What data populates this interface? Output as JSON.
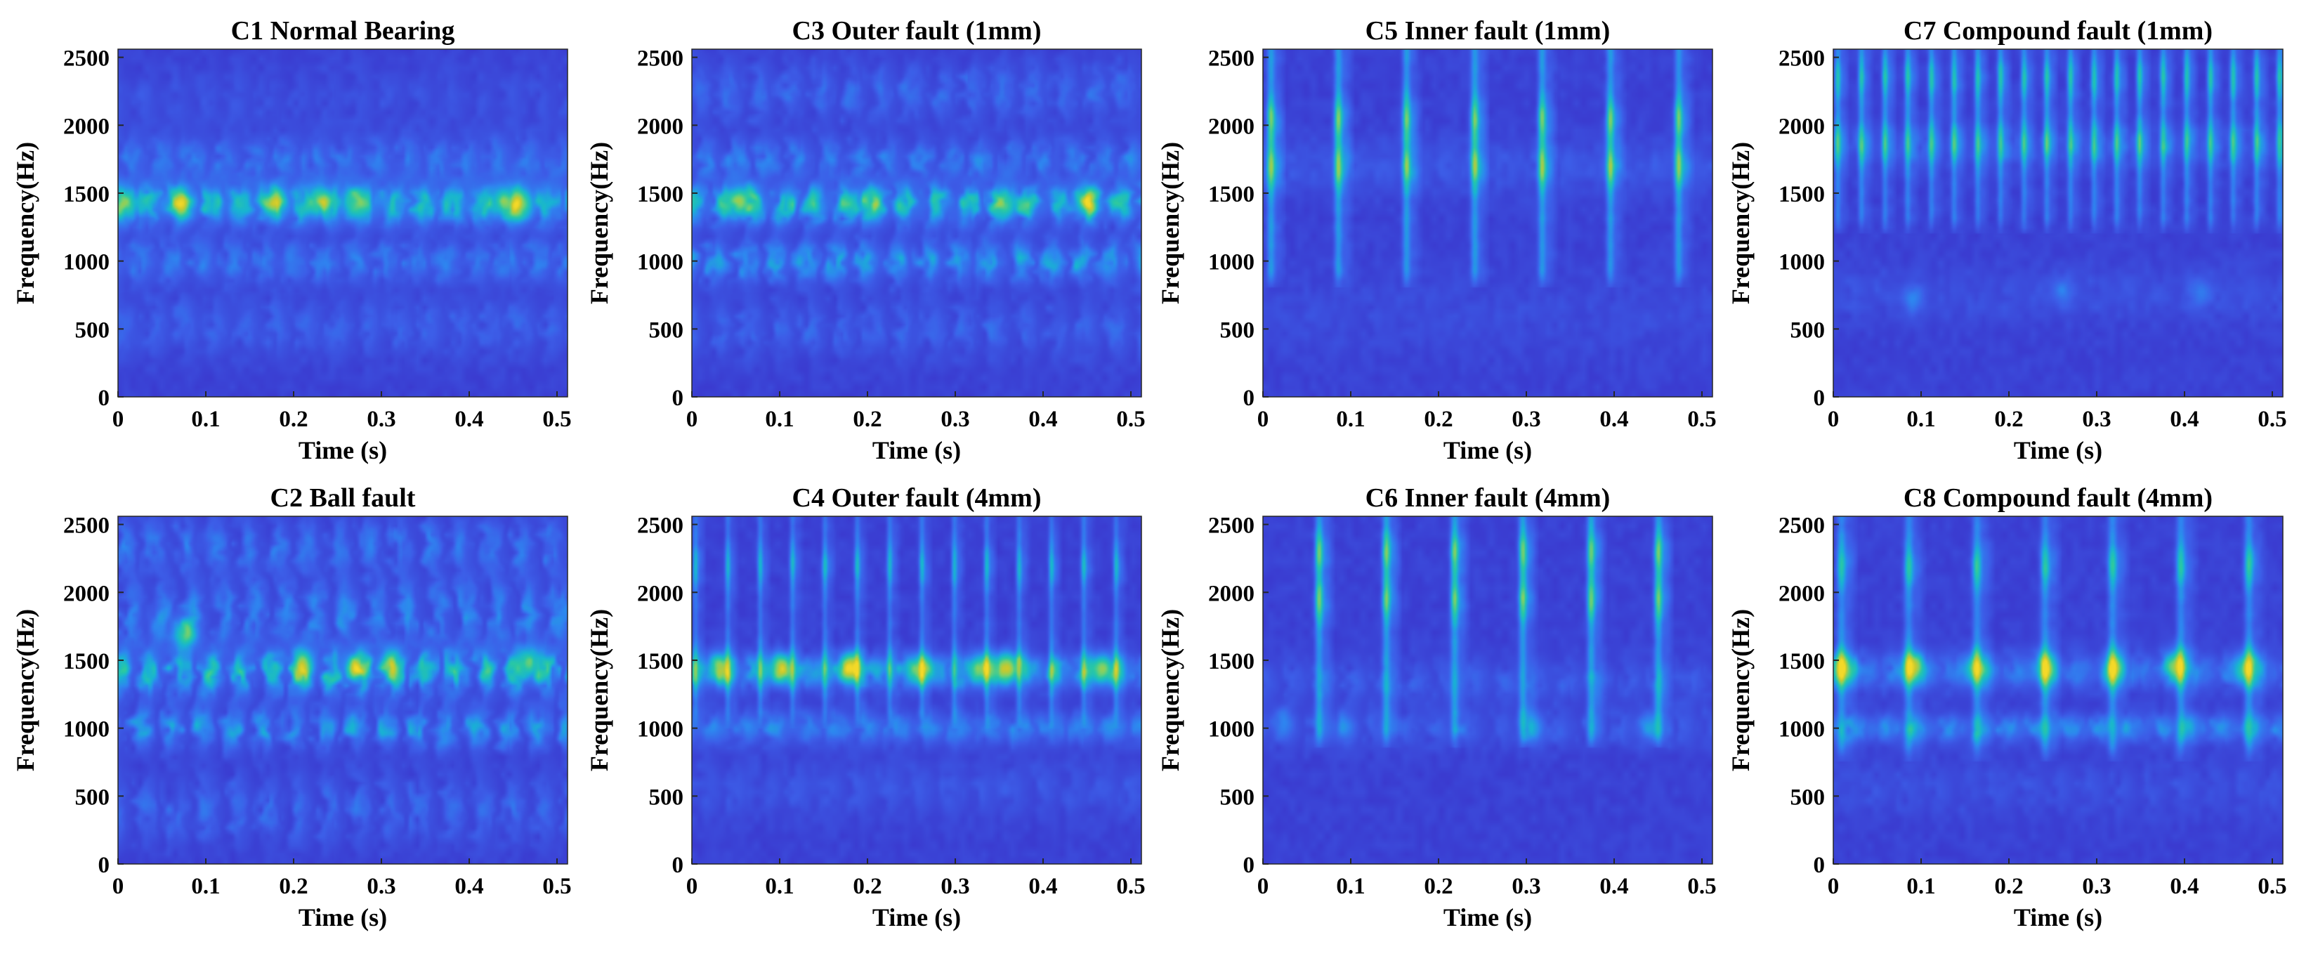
{
  "colors": {
    "background": "#332ba6",
    "colormap": [
      "#2c1ea6",
      "#3a3bd0",
      "#3c5ee8",
      "#2e86f0",
      "#18b4d2",
      "#29c8a4",
      "#7dd169",
      "#c7c92f",
      "#f4d928"
    ]
  },
  "chart_data": [
    {
      "type": "heatmap",
      "id": "c1",
      "title": "C1 Normal Bearing",
      "xlabel": "Time (s)",
      "ylabel": "Frequency(Hz)",
      "xlim": [
        0,
        0.512
      ],
      "ylim": [
        0,
        2560
      ],
      "xticks": [
        0,
        0.1,
        0.2,
        0.3,
        0.4,
        0.5
      ],
      "xtick_labels": [
        "0",
        "0.1",
        "0.2",
        "0.3",
        "0.4",
        "0.5"
      ],
      "yticks": [
        0,
        500,
        1000,
        1500,
        2000,
        2500
      ],
      "ytick_labels": [
        "0",
        "500",
        "1000",
        "1500",
        "2000",
        "2500"
      ],
      "bands": [
        {
          "f": 1420,
          "bw": 150,
          "amp": 0.42
        },
        {
          "f": 1000,
          "bw": 160,
          "amp": 0.2
        },
        {
          "f": 1750,
          "bw": 170,
          "amp": 0.18
        },
        {
          "f": 520,
          "bw": 220,
          "amp": 0.12
        },
        {
          "f": 2200,
          "bw": 250,
          "amp": 0.06
        }
      ],
      "band_modulation": 0.6,
      "hotspots": [
        {
          "t": 0.07,
          "f": 1430,
          "amp": 0.35
        },
        {
          "t": 0.18,
          "f": 1440,
          "amp": 0.3
        },
        {
          "t": 0.23,
          "f": 1450,
          "amp": 0.4
        },
        {
          "t": 0.27,
          "f": 1440,
          "amp": 0.35
        },
        {
          "t": 0.44,
          "f": 1440,
          "amp": 0.35
        },
        {
          "t": 0.46,
          "f": 1420,
          "amp": 0.4
        },
        {
          "t": 0.01,
          "f": 1420,
          "amp": 0.3
        }
      ],
      "impulses": []
    },
    {
      "type": "heatmap",
      "id": "c3",
      "title": "C3 Outer fault (1mm)",
      "xlabel": "Time (s)",
      "ylabel": "Frequency(Hz)",
      "xlim": [
        0,
        0.512
      ],
      "ylim": [
        0,
        2560
      ],
      "xticks": [
        0,
        0.1,
        0.2,
        0.3,
        0.4,
        0.5
      ],
      "xtick_labels": [
        "0",
        "0.1",
        "0.2",
        "0.3",
        "0.4",
        "0.5"
      ],
      "yticks": [
        0,
        500,
        1000,
        1500,
        2000,
        2500
      ],
      "ytick_labels": [
        "0",
        "500",
        "1000",
        "1500",
        "2000",
        "2500"
      ],
      "bands": [
        {
          "f": 1420,
          "bw": 140,
          "amp": 0.45
        },
        {
          "f": 1000,
          "bw": 150,
          "amp": 0.3
        },
        {
          "f": 1750,
          "bw": 160,
          "amp": 0.2
        },
        {
          "f": 2250,
          "bw": 220,
          "amp": 0.14
        },
        {
          "f": 500,
          "bw": 220,
          "amp": 0.12
        }
      ],
      "band_modulation": 0.7,
      "hotspots": [
        {
          "t": 0.055,
          "f": 1440,
          "amp": 0.5
        },
        {
          "t": 0.45,
          "f": 1440,
          "amp": 0.45
        },
        {
          "t": 0.2,
          "f": 1420,
          "amp": 0.3
        },
        {
          "t": 0.36,
          "f": 1420,
          "amp": 0.3
        }
      ],
      "impulses": []
    },
    {
      "type": "heatmap",
      "id": "c5",
      "title": "C5 Inner fault (1mm)",
      "xlabel": "Time (s)",
      "ylabel": "Frequency(Hz)",
      "xlim": [
        0,
        0.512
      ],
      "ylim": [
        0,
        2560
      ],
      "xticks": [
        0,
        0.1,
        0.2,
        0.3,
        0.4,
        0.5
      ],
      "xtick_labels": [
        "0",
        "0.1",
        "0.2",
        "0.3",
        "0.4",
        "0.5"
      ],
      "yticks": [
        0,
        500,
        1000,
        1500,
        2000,
        2500
      ],
      "ytick_labels": [
        "0",
        "500",
        "1000",
        "1500",
        "2000",
        "2500"
      ],
      "bands": [
        {
          "f": 1700,
          "bw": 200,
          "amp": 0.08
        },
        {
          "f": 600,
          "bw": 300,
          "amp": 0.04
        }
      ],
      "band_modulation": 0.3,
      "hotspots": [],
      "impulses": {
        "times": [
          0.008,
          0.085,
          0.163,
          0.241,
          0.318,
          0.396,
          0.474
        ],
        "fmin": 950,
        "fmax": 2560,
        "amp": 0.55,
        "width": 0.0045,
        "peaks": [
          1700,
          2050
        ]
      }
    },
    {
      "type": "heatmap",
      "id": "c7",
      "title": "C7 Compound fault (1mm)",
      "xlabel": "Time (s)",
      "ylabel": "Frequency(Hz)",
      "xlim": [
        0,
        0.512
      ],
      "ylim": [
        0,
        2560
      ],
      "xticks": [
        0,
        0.1,
        0.2,
        0.3,
        0.4,
        0.5
      ],
      "xtick_labels": [
        "0",
        "0.1",
        "0.2",
        "0.3",
        "0.4",
        "0.5"
      ],
      "yticks": [
        0,
        500,
        1000,
        1500,
        2000,
        2500
      ],
      "ytick_labels": [
        "0",
        "500",
        "1000",
        "1500",
        "2000",
        "2500"
      ],
      "bands": [
        {
          "f": 1850,
          "bw": 150,
          "amp": 0.1
        },
        {
          "f": 750,
          "bw": 200,
          "amp": 0.06
        }
      ],
      "band_modulation": 0.4,
      "hotspots": [
        {
          "t": 0.09,
          "f": 720,
          "amp": 0.15
        },
        {
          "t": 0.26,
          "f": 780,
          "amp": 0.15
        },
        {
          "t": 0.42,
          "f": 760,
          "amp": 0.15
        }
      ],
      "impulses": {
        "times": [
          0.004,
          0.031,
          0.058,
          0.084,
          0.111,
          0.137,
          0.164,
          0.19,
          0.217,
          0.243,
          0.27,
          0.297,
          0.323,
          0.349,
          0.376,
          0.403,
          0.43,
          0.456,
          0.483,
          0.509
        ],
        "fmin": 1350,
        "fmax": 2560,
        "amp": 0.42,
        "width": 0.0035,
        "peaks": [
          1880,
          2350
        ]
      }
    },
    {
      "type": "heatmap",
      "id": "c2",
      "title": "C2 Ball fault",
      "xlabel": "Time (s)",
      "ylabel": "Frequency(Hz)",
      "xlim": [
        0,
        0.512
      ],
      "ylim": [
        0,
        2560
      ],
      "xticks": [
        0,
        0.1,
        0.2,
        0.3,
        0.4,
        0.5
      ],
      "xtick_labels": [
        "0",
        "0.1",
        "0.2",
        "0.3",
        "0.4",
        "0.5"
      ],
      "yticks": [
        0,
        500,
        1000,
        1500,
        2000,
        2500
      ],
      "ytick_labels": [
        "0",
        "500",
        "1000",
        "1500",
        "2000",
        "2500"
      ],
      "bands": [
        {
          "f": 1420,
          "bw": 170,
          "amp": 0.42
        },
        {
          "f": 1000,
          "bw": 150,
          "amp": 0.28
        },
        {
          "f": 1850,
          "bw": 250,
          "amp": 0.22
        },
        {
          "f": 2350,
          "bw": 200,
          "amp": 0.18
        },
        {
          "f": 400,
          "bw": 250,
          "amp": 0.14
        }
      ],
      "band_modulation": 0.8,
      "hotspots": [
        {
          "t": 0.075,
          "f": 1700,
          "amp": 0.45
        },
        {
          "t": 0.21,
          "f": 1470,
          "amp": 0.35
        },
        {
          "t": 0.27,
          "f": 1440,
          "amp": 0.35
        },
        {
          "t": 0.31,
          "f": 1460,
          "amp": 0.35
        },
        {
          "t": 0.47,
          "f": 1480,
          "amp": 0.4
        }
      ],
      "impulses": []
    },
    {
      "type": "heatmap",
      "id": "c4",
      "title": "C4 Outer fault (4mm)",
      "xlabel": "Time (s)",
      "ylabel": "Frequency(Hz)",
      "xlim": [
        0,
        0.512
      ],
      "ylim": [
        0,
        2560
      ],
      "xticks": [
        0,
        0.1,
        0.2,
        0.3,
        0.4,
        0.5
      ],
      "xtick_labels": [
        "0",
        "0.1",
        "0.2",
        "0.3",
        "0.4",
        "0.5"
      ],
      "yticks": [
        0,
        500,
        1000,
        1500,
        2000,
        2500
      ],
      "ytick_labels": [
        "0",
        "500",
        "1000",
        "1500",
        "2000",
        "2500"
      ],
      "bands": [
        {
          "f": 1420,
          "bw": 120,
          "amp": 0.3
        },
        {
          "f": 1000,
          "bw": 120,
          "amp": 0.22
        },
        {
          "f": 550,
          "bw": 200,
          "amp": 0.08
        }
      ],
      "band_modulation": 0.5,
      "hotspots": [
        {
          "t": 0.03,
          "f": 1440,
          "amp": 0.45
        },
        {
          "t": 0.1,
          "f": 1440,
          "amp": 0.5
        },
        {
          "t": 0.18,
          "f": 1450,
          "amp": 0.6
        },
        {
          "t": 0.26,
          "f": 1430,
          "amp": 0.45
        },
        {
          "t": 0.33,
          "f": 1440,
          "amp": 0.45
        },
        {
          "t": 0.36,
          "f": 1450,
          "amp": 0.55
        },
        {
          "t": 0.47,
          "f": 1440,
          "amp": 0.45
        }
      ],
      "impulses": {
        "times": [
          0.003,
          0.04,
          0.077,
          0.114,
          0.151,
          0.188,
          0.225,
          0.262,
          0.299,
          0.336,
          0.373,
          0.41,
          0.447,
          0.484
        ],
        "fmin": 1150,
        "fmax": 2560,
        "amp": 0.35,
        "width": 0.0032,
        "peaks": [
          1440,
          2200
        ]
      }
    },
    {
      "type": "heatmap",
      "id": "c6",
      "title": "C6 Inner fault (4mm)",
      "xlabel": "Time (s)",
      "ylabel": "Frequency(Hz)",
      "xlim": [
        0,
        0.512
      ],
      "ylim": [
        0,
        2560
      ],
      "xticks": [
        0,
        0.1,
        0.2,
        0.3,
        0.4,
        0.5
      ],
      "xtick_labels": [
        "0",
        "0.1",
        "0.2",
        "0.3",
        "0.4",
        "0.5"
      ],
      "yticks": [
        0,
        500,
        1000,
        1500,
        2000,
        2500
      ],
      "ytick_labels": [
        "0",
        "500",
        "1000",
        "1500",
        "2000",
        "2500"
      ],
      "bands": [
        {
          "f": 1350,
          "bw": 150,
          "amp": 0.1
        },
        {
          "f": 1000,
          "bw": 140,
          "amp": 0.1
        }
      ],
      "band_modulation": 0.6,
      "hotspots": [
        {
          "t": 0.02,
          "f": 1050,
          "amp": 0.15
        },
        {
          "t": 0.09,
          "f": 1000,
          "amp": 0.15
        },
        {
          "t": 0.31,
          "f": 1000,
          "amp": 0.18
        },
        {
          "t": 0.44,
          "f": 1000,
          "amp": 0.18
        }
      ],
      "impulses": {
        "times": [
          0.063,
          0.14,
          0.218,
          0.296,
          0.374,
          0.451
        ],
        "fmin": 1000,
        "fmax": 2560,
        "amp": 0.55,
        "width": 0.0045,
        "peaks": [
          1950,
          2300
        ]
      }
    },
    {
      "type": "heatmap",
      "id": "c8",
      "title": "C8 Compound fault (4mm)",
      "xlabel": "Time (s)",
      "ylabel": "Frequency(Hz)",
      "xlim": [
        0,
        0.512
      ],
      "ylim": [
        0,
        2560
      ],
      "xticks": [
        0,
        0.1,
        0.2,
        0.3,
        0.4,
        0.5
      ],
      "xtick_labels": [
        "0",
        "0.1",
        "0.2",
        "0.3",
        "0.4",
        "0.5"
      ],
      "yticks": [
        0,
        500,
        1000,
        1500,
        2000,
        2500
      ],
      "ytick_labels": [
        "0",
        "500",
        "1000",
        "1500",
        "2000",
        "2500"
      ],
      "bands": [
        {
          "f": 1420,
          "bw": 130,
          "amp": 0.2
        },
        {
          "f": 1000,
          "bw": 100,
          "amp": 0.25
        },
        {
          "f": 550,
          "bw": 200,
          "amp": 0.06
        }
      ],
      "band_modulation": 0.5,
      "hotspots": [
        {
          "t": 0.01,
          "f": 1440,
          "amp": 0.4
        },
        {
          "t": 0.09,
          "f": 1450,
          "amp": 0.4
        },
        {
          "t": 0.16,
          "f": 1440,
          "amp": 0.35
        },
        {
          "t": 0.24,
          "f": 1440,
          "amp": 0.35
        },
        {
          "t": 0.32,
          "f": 1440,
          "amp": 0.35
        },
        {
          "t": 0.39,
          "f": 1460,
          "amp": 0.45
        },
        {
          "t": 0.47,
          "f": 1440,
          "amp": 0.4
        }
      ],
      "impulses": {
        "times": [
          0.008,
          0.085,
          0.163,
          0.241,
          0.318,
          0.396,
          0.474
        ],
        "fmin": 900,
        "fmax": 2560,
        "amp": 0.45,
        "width": 0.005,
        "peaks": [
          1450,
          2200
        ]
      }
    }
  ]
}
